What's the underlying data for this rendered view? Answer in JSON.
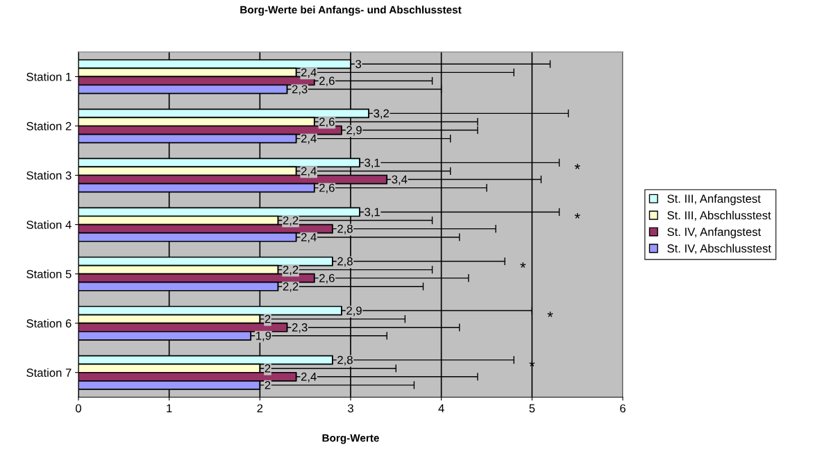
{
  "chart_data": {
    "type": "bar",
    "orientation": "horizontal",
    "title": "Borg-Werte bei Anfangs- und Abschlusstest",
    "xlabel": "Borg-Werte",
    "categories": [
      "Station 1",
      "Station 2",
      "Station 3",
      "Station 4",
      "Station 5",
      "Station 6",
      "Station 7"
    ],
    "series": [
      {
        "name": "St. III, Anfangstest",
        "color": "#ccffff",
        "values": [
          3,
          3.2,
          3.1,
          3.1,
          2.8,
          2.9,
          2.8
        ],
        "value_labels": [
          "3",
          "3,2",
          "3,1",
          "3,1",
          "2,8",
          "2,9",
          "2,8"
        ],
        "errors": [
          [
            3,
            5.2
          ],
          [
            3.2,
            5.4
          ],
          [
            3.1,
            5.3
          ],
          [
            3.1,
            5.3
          ],
          [
            2.8,
            4.7
          ],
          [
            2.9,
            5.0
          ],
          [
            2.8,
            4.8
          ]
        ]
      },
      {
        "name": "St. III, Abschlusstest",
        "color": "#ffffcc",
        "values": [
          2.4,
          2.6,
          2.4,
          2.2,
          2.2,
          2,
          2
        ],
        "value_labels": [
          "2,4",
          "2,6",
          "2,4",
          "2,2",
          "2,2",
          "2",
          "2"
        ],
        "errors": [
          [
            2.4,
            4.8
          ],
          [
            2.6,
            4.4
          ],
          [
            2.4,
            4.1
          ],
          [
            2.2,
            3.9
          ],
          [
            2.2,
            3.9
          ],
          [
            2,
            3.6
          ],
          [
            2,
            3.5
          ]
        ]
      },
      {
        "name": "St. IV, Anfangstest",
        "color": "#993366",
        "values": [
          2.6,
          2.9,
          3.4,
          2.8,
          2.6,
          2.3,
          2.4
        ],
        "value_labels": [
          "2,6",
          "2,9",
          "3,4",
          "2,8",
          "2,6",
          "2,3",
          "2,4"
        ],
        "errors": [
          [
            2.6,
            3.9
          ],
          [
            2.9,
            4.4
          ],
          [
            3.4,
            5.1
          ],
          [
            2.8,
            4.6
          ],
          [
            2.6,
            4.3
          ],
          [
            2.3,
            4.2
          ],
          [
            2.4,
            4.4
          ]
        ]
      },
      {
        "name": "St. IV, Abschlusstest",
        "color": "#9999ff",
        "values": [
          2.3,
          2.4,
          2.6,
          2.4,
          2.2,
          1.9,
          2
        ],
        "value_labels": [
          "2,3",
          "2,4",
          "2,6",
          "2,4",
          "2,2",
          "1,9",
          "2"
        ],
        "errors": [
          [
            2.3,
            4.0
          ],
          [
            2.4,
            4.1
          ],
          [
            2.6,
            4.5
          ],
          [
            2.4,
            4.2
          ],
          [
            2.2,
            3.8
          ],
          [
            1.9,
            3.4
          ],
          [
            2,
            3.7
          ]
        ]
      }
    ],
    "annotations": [
      "*",
      "*",
      "*",
      "*",
      "*"
    ],
    "xlim": [
      0,
      6
    ],
    "xticks": [
      0,
      1,
      2,
      3,
      4,
      5,
      6
    ],
    "grid": "x",
    "legend": "right"
  }
}
